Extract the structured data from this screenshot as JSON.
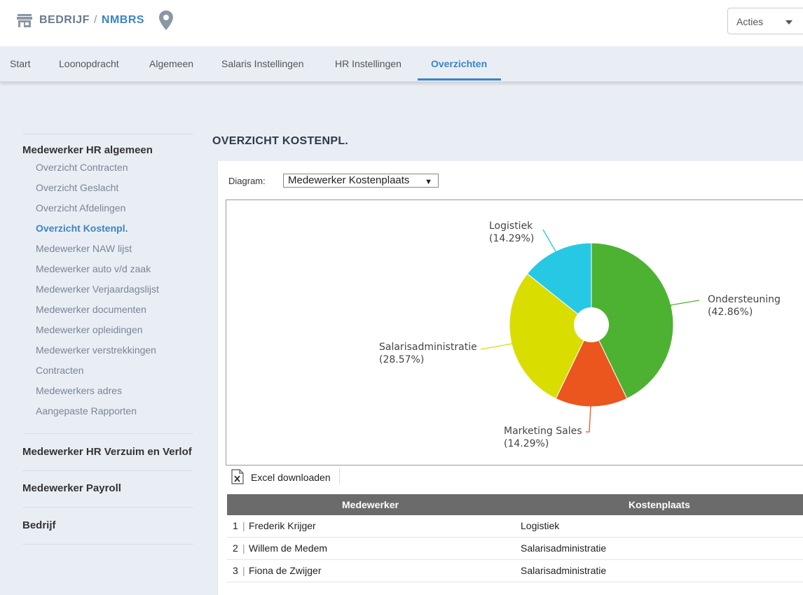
{
  "header": {
    "company_label": "BEDRIJF",
    "separator": "/",
    "org_name": "NMBRS",
    "actions_label": "Acties"
  },
  "tabs": [
    {
      "label": "Start"
    },
    {
      "label": "Loonopdracht"
    },
    {
      "label": "Algemeen"
    },
    {
      "label": "Salaris Instellingen"
    },
    {
      "label": "HR Instellingen"
    },
    {
      "label": "Overzichten",
      "active": true
    }
  ],
  "sidebar": {
    "sections": [
      {
        "title": "Medewerker HR algemeen",
        "items": [
          "Overzicht Contracten",
          "Overzicht Geslacht",
          "Overzicht Afdelingen",
          "Overzicht Kostenpl.",
          "Medewerker NAW lijst",
          "Medewerker auto v/d zaak",
          "Medewerker Verjaardagslijst",
          "Medewerker documenten",
          "Medewerker opleidingen",
          "Medewerker verstrekkingen",
          "Contracten",
          "Medewerkers adres",
          "Aangepaste Rapporten"
        ],
        "active_item": "Overzicht Kostenpl."
      },
      {
        "title": "Medewerker HR Verzuim en Verlof"
      },
      {
        "title": "Medewerker Payroll"
      },
      {
        "title": "Bedrijf"
      }
    ]
  },
  "main": {
    "title": "OVERZICHT KOSTENPL.",
    "diagram_label": "Diagram:",
    "diagram_selected": "Medewerker Kostenplaats",
    "excel_label": "Excel downloaden"
  },
  "chart_data": {
    "type": "pie",
    "slices": [
      {
        "label": "Ondersteuning",
        "percent_label": "(42.86%)",
        "value": 42.86,
        "color": "#4db232"
      },
      {
        "label": "Marketing Sales",
        "percent_label": "(14.29%)",
        "value": 14.29,
        "color": "#ea561e"
      },
      {
        "label": "Salarisadministratie",
        "percent_label": "(28.57%)",
        "value": 28.57,
        "color": "#d9dd00"
      },
      {
        "label": "Logistiek",
        "percent_label": "(14.29%)",
        "value": 14.29,
        "color": "#27c8e4"
      }
    ]
  },
  "table": {
    "columns": [
      "Medewerker",
      "Kostenplaats"
    ],
    "rows": [
      {
        "n": "1",
        "name": "Frederik Krijger",
        "kostenplaats": "Logistiek"
      },
      {
        "n": "2",
        "name": "Willem de Medem",
        "kostenplaats": "Salarisadministratie"
      },
      {
        "n": "3",
        "name": "Fiona de Zwijger",
        "kostenplaats": "Salarisadministratie"
      }
    ]
  }
}
